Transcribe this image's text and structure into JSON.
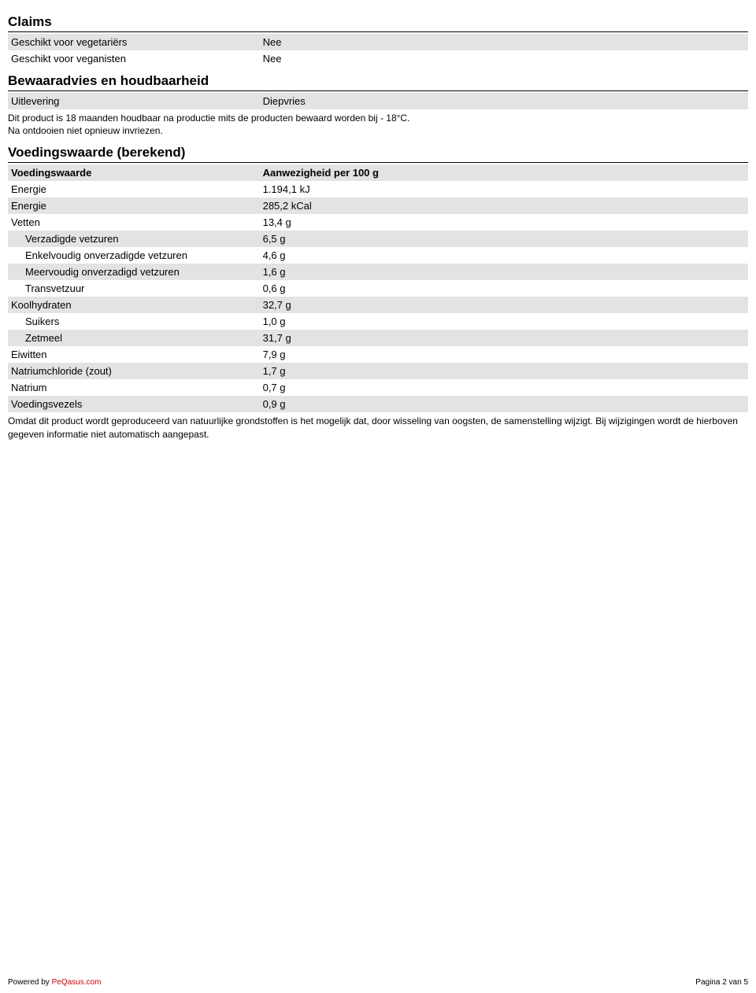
{
  "claims": {
    "title": "Claims",
    "rows": [
      {
        "label": "Geschikt voor vegetariërs",
        "value": "Nee"
      },
      {
        "label": "Geschikt voor veganisten",
        "value": "Nee"
      }
    ]
  },
  "storage": {
    "title": "Bewaaradvies en houdbaarheid",
    "rows": [
      {
        "label": "Uitlevering",
        "value": "Diepvries"
      }
    ],
    "note": "Dit product is 18 maanden houdbaar na productie mits de producten bewaard worden bij - 18°C.\nNa ontdooien niet opnieuw invriezen."
  },
  "nutrition": {
    "title": "Voedingswaarde (berekend)",
    "header_label": "Voedingswaarde",
    "header_value": "Aanwezigheid per 100 g",
    "rows": [
      {
        "label": "Energie",
        "value": "1.194,1 kJ",
        "indent": 0,
        "gray": false
      },
      {
        "label": "Energie",
        "value": "285,2 kCal",
        "indent": 0,
        "gray": true
      },
      {
        "label": "Vetten",
        "value": "13,4 g",
        "indent": 0,
        "gray": false
      },
      {
        "label": "Verzadigde vetzuren",
        "value": "6,5 g",
        "indent": 1,
        "gray": true
      },
      {
        "label": "Enkelvoudig onverzadigde vetzuren",
        "value": "4,6 g",
        "indent": 1,
        "gray": false
      },
      {
        "label": "Meervoudig onverzadigd vetzuren",
        "value": "1,6 g",
        "indent": 1,
        "gray": true
      },
      {
        "label": "Transvetzuur",
        "value": "0,6 g",
        "indent": 1,
        "gray": false
      },
      {
        "label": "Koolhydraten",
        "value": "32,7 g",
        "indent": 0,
        "gray": true
      },
      {
        "label": "Suikers",
        "value": "1,0 g",
        "indent": 1,
        "gray": false
      },
      {
        "label": "Zetmeel",
        "value": "31,7 g",
        "indent": 1,
        "gray": true
      },
      {
        "label": "Eiwitten",
        "value": "7,9 g",
        "indent": 0,
        "gray": false
      },
      {
        "label": "Natriumchloride (zout)",
        "value": "1,7 g",
        "indent": 0,
        "gray": true
      },
      {
        "label": "Natrium",
        "value": "0,7 g",
        "indent": 0,
        "gray": false
      },
      {
        "label": "Voedingsvezels",
        "value": "0,9 g",
        "indent": 0,
        "gray": true
      }
    ],
    "footnote": "Omdat dit product wordt geproduceerd van natuurlijke grondstoffen is het mogelijk dat, door wisseling van oogsten, de samenstelling wijzigt. Bij wijzigingen wordt de hierboven gegeven informatie niet automatisch aangepast."
  },
  "footer": {
    "powered_by": "Powered by ",
    "link_text": "PeQasus.com",
    "page": "Pagina 2 van 5"
  }
}
